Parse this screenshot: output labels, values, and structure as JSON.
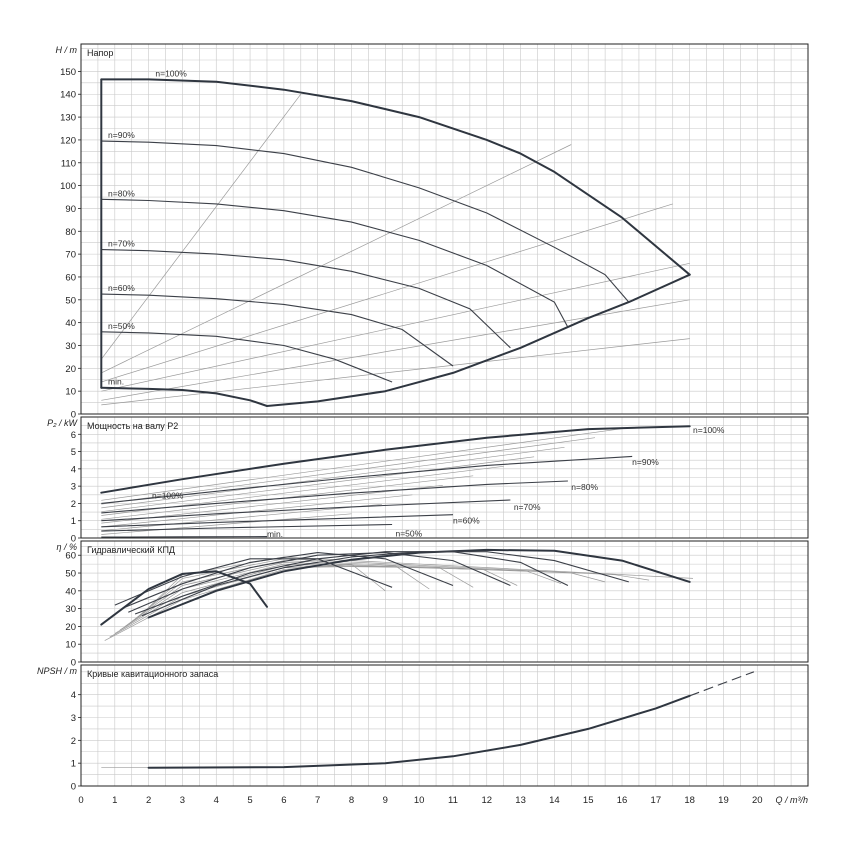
{
  "x_axis": {
    "label": "Q / m³/h",
    "ticks": [
      "0",
      "1",
      "2",
      "3",
      "4",
      "5",
      "6",
      "7",
      "8",
      "9",
      "10",
      "11",
      "12",
      "13",
      "14",
      "15",
      "16",
      "17",
      "18",
      "19",
      "20"
    ],
    "range": [
      0,
      21.5
    ]
  },
  "chart_data": [
    {
      "id": "head",
      "type": "line",
      "title": "Напор",
      "ylabel": "H / m",
      "ylim": [
        0,
        162
      ],
      "yticks": [
        0,
        10,
        20,
        30,
        40,
        50,
        60,
        70,
        80,
        90,
        100,
        110,
        120,
        130,
        140,
        150
      ],
      "series": [
        {
          "name": "n=100%",
          "points": [
            [
              0.6,
              146.5
            ],
            [
              2,
              146.5
            ],
            [
              4,
              145.5
            ],
            [
              6,
              142
            ],
            [
              8,
              137
            ],
            [
              10,
              130
            ],
            [
              12,
              120
            ],
            [
              13,
              114
            ],
            [
              14,
              106
            ],
            [
              16,
              86
            ],
            [
              18,
              61
            ]
          ]
        },
        {
          "name": "n=90%",
          "points": [
            [
              0.6,
              119.5
            ],
            [
              2,
              119
            ],
            [
              4,
              117.5
            ],
            [
              6,
              114
            ],
            [
              8,
              108
            ],
            [
              10,
              99
            ],
            [
              12,
              88
            ],
            [
              14,
              73
            ],
            [
              15.5,
              61
            ],
            [
              16.2,
              49
            ]
          ]
        },
        {
          "name": "n=80%",
          "points": [
            [
              0.6,
              94
            ],
            [
              2,
              93.5
            ],
            [
              4,
              92
            ],
            [
              6,
              89
            ],
            [
              8,
              84
            ],
            [
              10,
              76
            ],
            [
              12,
              65
            ],
            [
              14,
              49
            ],
            [
              14.4,
              38
            ]
          ]
        },
        {
          "name": "n=70%",
          "points": [
            [
              0.6,
              72
            ],
            [
              2,
              71.5
            ],
            [
              4,
              70
            ],
            [
              6,
              67.5
            ],
            [
              8,
              62.5
            ],
            [
              10,
              55
            ],
            [
              11.5,
              46
            ],
            [
              12.7,
              29
            ]
          ]
        },
        {
          "name": "n=60%",
          "points": [
            [
              0.6,
              52.5
            ],
            [
              2,
              52
            ],
            [
              4,
              50.5
            ],
            [
              6,
              48
            ],
            [
              8,
              43.5
            ],
            [
              9.5,
              37
            ],
            [
              11,
              21
            ]
          ]
        },
        {
          "name": "n=50%",
          "points": [
            [
              0.6,
              36
            ],
            [
              2,
              35.5
            ],
            [
              4,
              34
            ],
            [
              6,
              30
            ],
            [
              7.5,
              24
            ],
            [
              9.2,
              14
            ]
          ]
        },
        {
          "name": "min.",
          "points": [
            [
              0.6,
              11.5
            ],
            [
              2,
              11
            ],
            [
              3,
              10.5
            ],
            [
              4,
              9
            ],
            [
              5,
              6
            ],
            [
              5.5,
              3.5
            ]
          ]
        },
        {
          "name": "",
          "points": [
            [
              5.5,
              3.5
            ],
            [
              7,
              5.5
            ],
            [
              9,
              10
            ],
            [
              11,
              18
            ],
            [
              13,
              29
            ],
            [
              15,
              42
            ],
            [
              16.2,
              49
            ],
            [
              18,
              61
            ]
          ]
        }
      ],
      "labels": [
        "n=100%",
        "n=90%",
        "n=80%",
        "n=70%",
        "n=60%",
        "n=50%",
        "min."
      ]
    },
    {
      "id": "power",
      "type": "line",
      "title": "Мощность на валу P2",
      "ylabel": "P₂ / kW",
      "ylim": [
        0,
        7
      ],
      "yticks": [
        0,
        1,
        2,
        3,
        4,
        5,
        6
      ],
      "series": [
        {
          "name": "n=100%",
          "points": [
            [
              0.6,
              2.62
            ],
            [
              3,
              3.4
            ],
            [
              6,
              4.3
            ],
            [
              9,
              5.1
            ],
            [
              12,
              5.8
            ],
            [
              15,
              6.3
            ],
            [
              18,
              6.47
            ]
          ]
        },
        {
          "name": "n=90%",
          "points": [
            [
              0.6,
              2.0
            ],
            [
              4,
              2.7
            ],
            [
              8,
              3.5
            ],
            [
              12,
              4.2
            ],
            [
              16.3,
              4.72
            ]
          ]
        },
        {
          "name": "n=80%",
          "points": [
            [
              0.6,
              1.45
            ],
            [
              4,
              2.0
            ],
            [
              8,
              2.6
            ],
            [
              12,
              3.1
            ],
            [
              14.4,
              3.3
            ]
          ]
        },
        {
          "name": "n=70%",
          "points": [
            [
              0.6,
              1.0
            ],
            [
              4,
              1.4
            ],
            [
              8,
              1.8
            ],
            [
              12.7,
              2.2
            ]
          ]
        },
        {
          "name": "n=60%",
          "points": [
            [
              0.6,
              0.65
            ],
            [
              4,
              0.9
            ],
            [
              8,
              1.15
            ],
            [
              11,
              1.35
            ]
          ]
        },
        {
          "name": "n=50%",
          "points": [
            [
              0.6,
              0.4
            ],
            [
              4,
              0.58
            ],
            [
              9.2,
              0.78
            ]
          ]
        },
        {
          "name": "min.",
          "points": [
            [
              0.6,
              0.05
            ],
            [
              3,
              0.07
            ],
            [
              5.5,
              0.08
            ]
          ]
        }
      ],
      "labels": [
        "n=100%",
        "n=90%",
        "n=80%",
        "n=70%",
        "n=60%",
        "n=50%",
        "n=100%",
        "min."
      ]
    },
    {
      "id": "efficiency",
      "type": "line",
      "title": "Гидравлический КПД",
      "ylabel": "η / %",
      "ylim": [
        0,
        68
      ],
      "yticks": [
        0,
        10,
        20,
        30,
        40,
        50,
        60
      ],
      "series": [
        {
          "name": "n=100%",
          "points": [
            [
              2,
              25
            ],
            [
              4,
              40
            ],
            [
              6,
              51
            ],
            [
              8,
              57.5
            ],
            [
              10,
              61.5
            ],
            [
              12,
              63
            ],
            [
              14,
              62.5
            ],
            [
              16,
              57
            ],
            [
              18,
              45
            ]
          ]
        },
        {
          "name": "n=90%",
          "points": [
            [
              1.8,
              26
            ],
            [
              4,
              43
            ],
            [
              6,
              53
            ],
            [
              8,
              59
            ],
            [
              10,
              62
            ],
            [
              12,
              62
            ],
            [
              14,
              57
            ],
            [
              16.2,
              45
            ]
          ]
        },
        {
          "name": "n=80%",
          "points": [
            [
              1.6,
              27
            ],
            [
              3,
              37
            ],
            [
              5,
              50
            ],
            [
              7,
              58
            ],
            [
              9,
              62
            ],
            [
              11,
              62
            ],
            [
              13,
              56
            ],
            [
              14.4,
              43
            ]
          ]
        },
        {
          "name": "n=70%",
          "points": [
            [
              1.4,
              28
            ],
            [
              3,
              41
            ],
            [
              5,
              53
            ],
            [
              7,
              60
            ],
            [
              9,
              61.5
            ],
            [
              11,
              57
            ],
            [
              12.7,
              43
            ]
          ]
        },
        {
          "name": "n=60%",
          "points": [
            [
              1.2,
              30
            ],
            [
              3,
              44
            ],
            [
              5,
              56
            ],
            [
              7,
              61.5
            ],
            [
              9,
              58
            ],
            [
              11,
              43
            ]
          ]
        },
        {
          "name": "n=50%",
          "points": [
            [
              1,
              32
            ],
            [
              3,
              48
            ],
            [
              5,
              58
            ],
            [
              7,
              58
            ],
            [
              9.2,
              42
            ]
          ]
        },
        {
          "name": "min.",
          "points": [
            [
              0.6,
              21
            ],
            [
              2,
              41
            ],
            [
              3,
              49.5
            ],
            [
              4,
              51
            ],
            [
              5,
              44
            ],
            [
              5.5,
              31
            ]
          ]
        }
      ]
    },
    {
      "id": "npsh",
      "type": "line",
      "title": "Кривые кавитационного запаса",
      "ylabel": "NPSH / m",
      "ylim": [
        0,
        5.3
      ],
      "yticks": [
        0,
        1,
        2,
        3,
        4
      ],
      "series": [
        {
          "name": "",
          "points": [
            [
              2,
              0.8
            ],
            [
              6,
              0.83
            ],
            [
              9,
              1.0
            ],
            [
              11,
              1.3
            ],
            [
              13,
              1.8
            ],
            [
              15,
              2.5
            ],
            [
              17,
              3.4
            ],
            [
              18,
              3.95
            ]
          ]
        },
        {
          "name": "",
          "points": [
            [
              18,
              3.95
            ],
            [
              19.9,
              5.0
            ]
          ]
        }
      ]
    }
  ]
}
